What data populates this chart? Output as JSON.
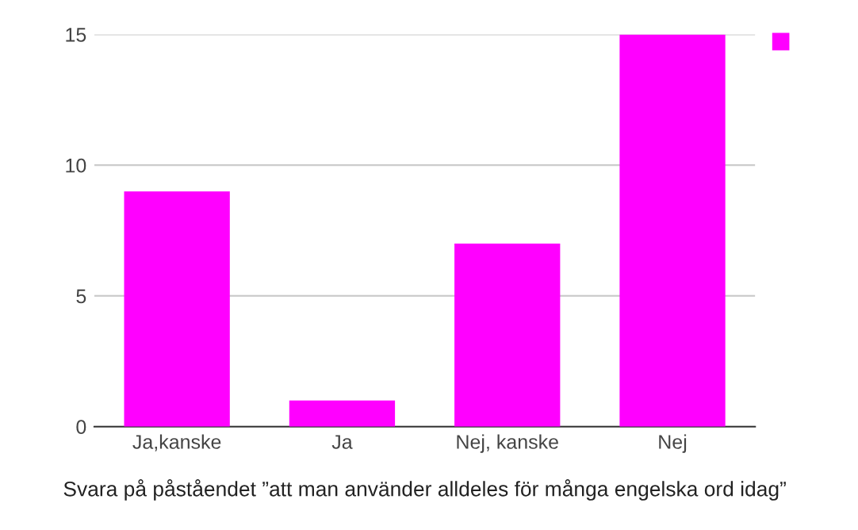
{
  "chart_data": {
    "type": "bar",
    "xlabel": "Svara på påståendet ”att man använder alldeles för många engelska ord idag”",
    "categories": [
      "Ja,kanske",
      "Ja",
      "Nej, kanske",
      "Nej"
    ],
    "series": [
      {
        "color": "#ff00ff",
        "values": [
          9,
          1,
          7,
          15
        ]
      }
    ],
    "ylim": [
      0,
      15
    ],
    "yticks": [
      0,
      5,
      10,
      15
    ],
    "grid": "y"
  }
}
